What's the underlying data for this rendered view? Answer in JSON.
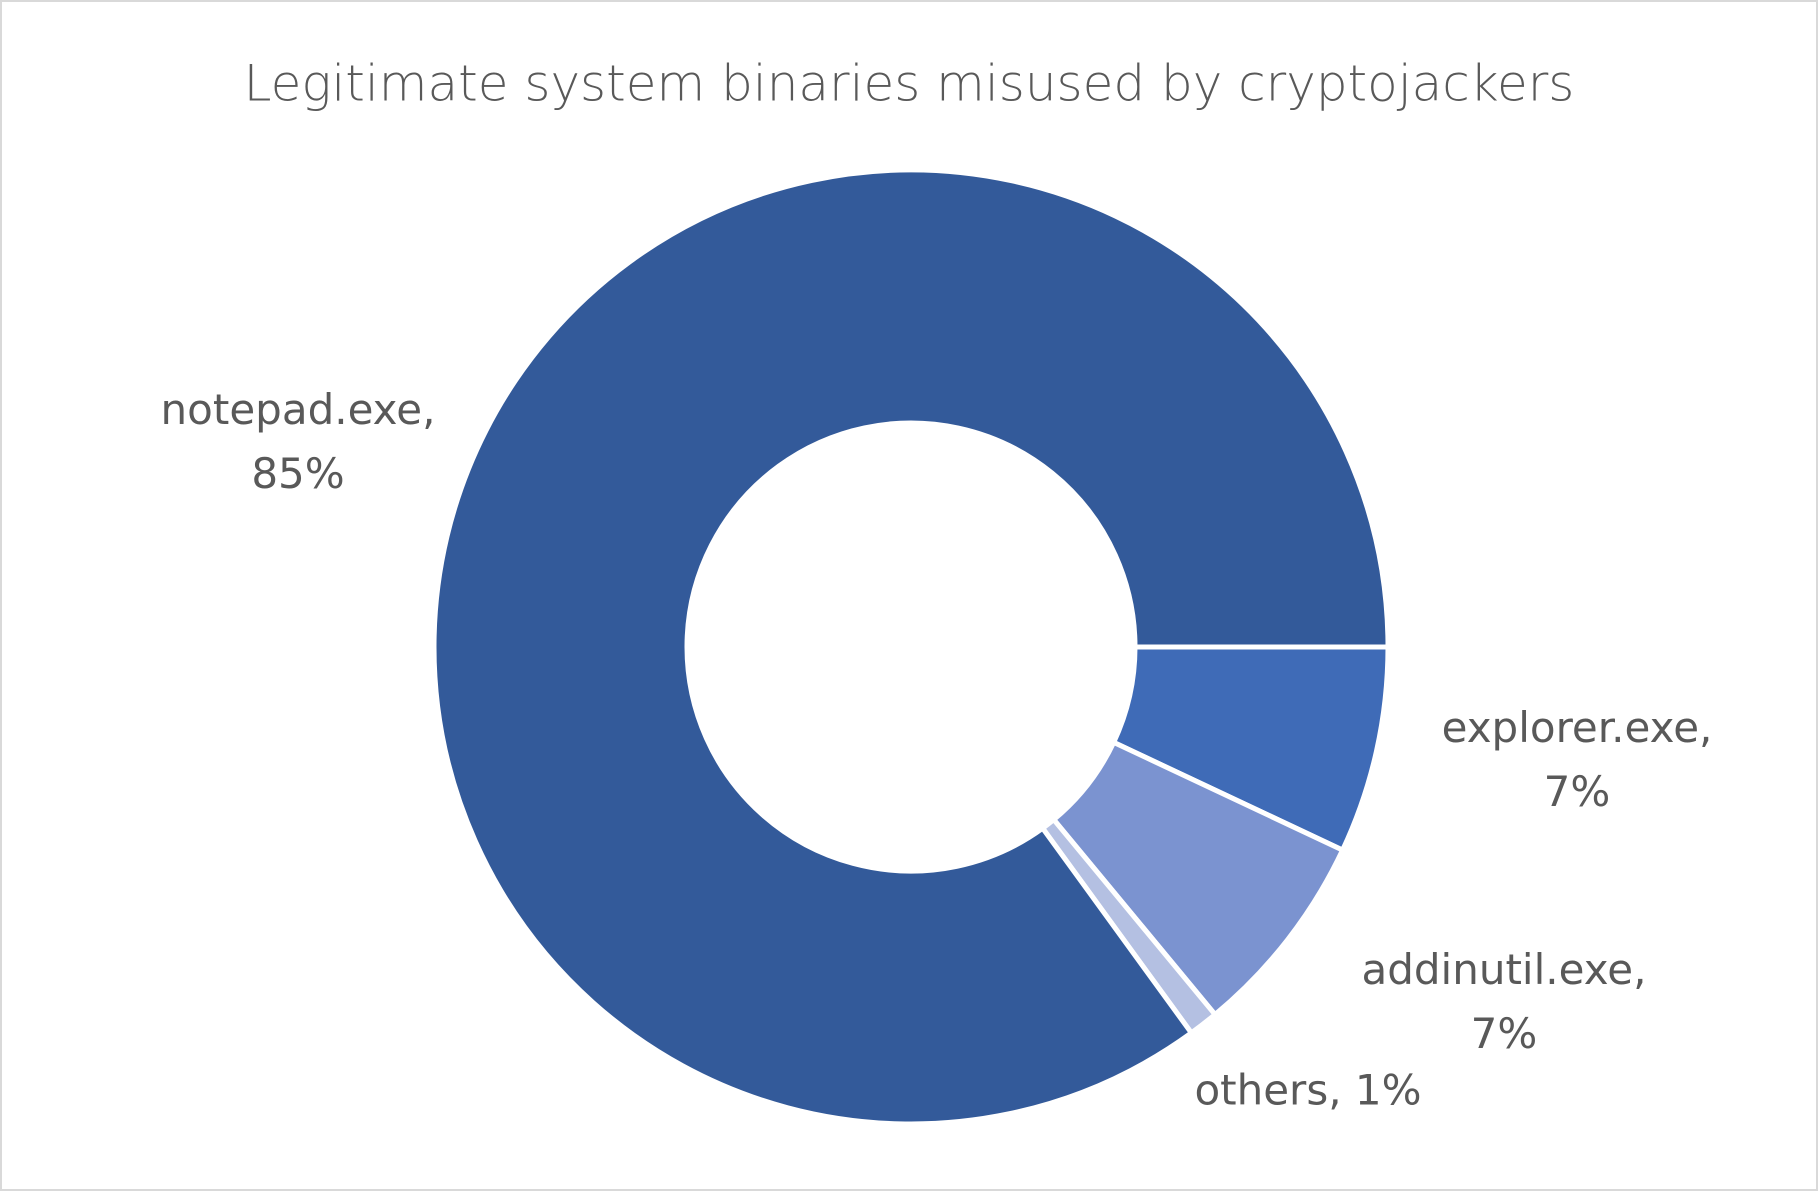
{
  "chart_data": {
    "type": "donut",
    "title": "Legitimate system binaries misused by cryptojackers",
    "values": [
      7,
      7,
      1,
      85
    ],
    "value_labels": [
      "explorer.exe, 7%",
      "addinutil.exe, 7%",
      "others, 1%",
      "notepad.exe, 85%"
    ],
    "colors": [
      "#3f6bb7",
      "#7b93d0",
      "#b4c0e2",
      "#335a9a"
    ]
  }
}
